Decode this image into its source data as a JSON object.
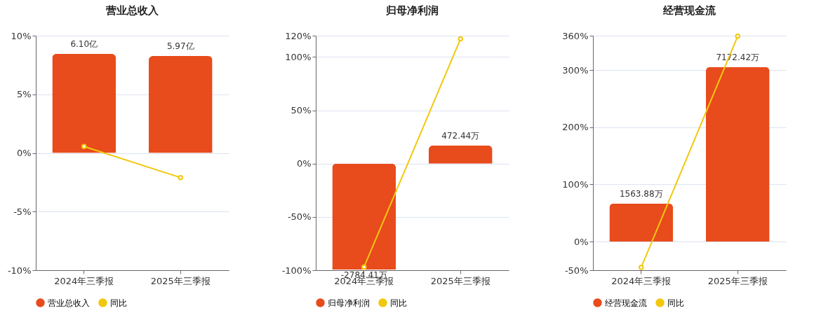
{
  "chart_data": [
    {
      "type": "bar",
      "title": "营业总收入",
      "categories": [
        "2024年三季报",
        "2025年三季报"
      ],
      "series": [
        {
          "name": "营业总收入",
          "axis": "y2",
          "color": "#e84b1c",
          "values": [
            6.1,
            5.97
          ],
          "value_labels": [
            "6.10亿",
            "5.97亿"
          ]
        },
        {
          "name": "同比",
          "type": "line",
          "color": "#f2c80f",
          "values": [
            0.55,
            -2.1
          ]
        }
      ],
      "ylim": [
        -10,
        10
      ],
      "yticks": [
        {
          "value": -10,
          "label": "-10%"
        },
        {
          "value": -5,
          "label": "-5%"
        },
        {
          "value": 0,
          "label": "0%"
        },
        {
          "value": 5,
          "label": "5%"
        },
        {
          "value": 10,
          "label": "10%"
        }
      ],
      "y2lim": [
        -7.22,
        7.22
      ],
      "grid": "y",
      "legend": "bottom",
      "marker": "circle"
    },
    {
      "type": "bar",
      "title": "归母净利润",
      "categories": [
        "2024年三季报",
        "2025年三季报"
      ],
      "series": [
        {
          "name": "归母净利润",
          "axis": "y2",
          "color": "#e84b1c",
          "values": [
            -2784.41,
            472.44
          ],
          "value_labels": [
            "-2784.41万",
            "472.44万"
          ]
        },
        {
          "name": "同比",
          "type": "line",
          "color": "#f2c80f",
          "values": [
            -97,
            117
          ]
        }
      ],
      "ylim": [
        -100,
        120
      ],
      "yticks": [
        {
          "value": -100,
          "label": "-100%"
        },
        {
          "value": -50,
          "label": "-50%"
        },
        {
          "value": 0,
          "label": "0%"
        },
        {
          "value": 50,
          "label": "50%"
        },
        {
          "value": 100,
          "label": "100%"
        },
        {
          "value": 120,
          "label": "120%"
        }
      ],
      "y2lim": [
        -2800,
        3360
      ],
      "grid": "y",
      "legend": "bottom",
      "marker": "circle"
    },
    {
      "type": "bar",
      "title": "经营现金流",
      "categories": [
        "2024年三季报",
        "2025年三季报"
      ],
      "series": [
        {
          "name": "经营现金流",
          "axis": "y2",
          "color": "#e84b1c",
          "values": [
            1563.88,
            7172.42
          ],
          "value_labels": [
            "1563.88万",
            "7172.42万"
          ]
        },
        {
          "name": "同比",
          "type": "line",
          "color": "#f2c80f",
          "values": [
            -45,
            359
          ]
        }
      ],
      "ylim": [
        -50,
        360
      ],
      "yticks": [
        {
          "value": -50,
          "label": "-50%"
        },
        {
          "value": 0,
          "label": "0%"
        },
        {
          "value": 100,
          "label": "100%"
        },
        {
          "value": 200,
          "label": "200%"
        },
        {
          "value": 300,
          "label": "300%"
        },
        {
          "value": 360,
          "label": "360%"
        }
      ],
      "y2lim": [
        -1175,
        8460
      ],
      "grid": "y",
      "legend": "bottom",
      "marker": "circle"
    }
  ]
}
